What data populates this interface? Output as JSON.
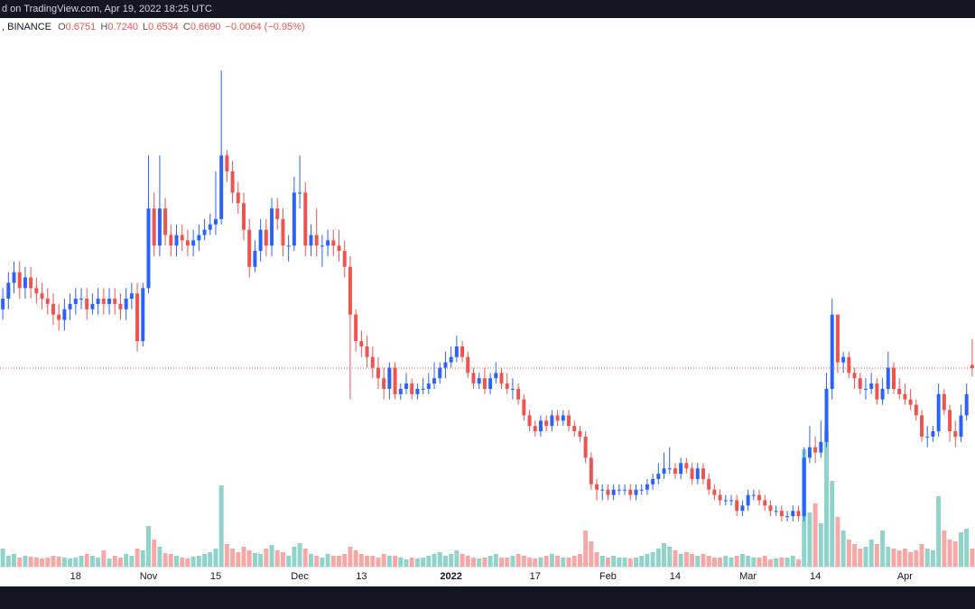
{
  "header": {
    "source": "d on TradingView.com, Apr 19, 2022 18:25 UTC",
    "symbol": ", BINANCE",
    "ohlc": [
      {
        "key": "O",
        "value": "0.6751"
      },
      {
        "key": "H",
        "value": "0.7240"
      },
      {
        "key": "L",
        "value": "0.6534"
      },
      {
        "key": "C",
        "value": "0.6690"
      }
    ],
    "change": "−0.0064 (−0.95%)"
  },
  "chart_data": {
    "type": "candlestick",
    "categories": [
      null,
      null,
      null,
      null,
      null,
      null,
      null,
      null,
      null,
      null,
      null,
      null,
      null,
      "18",
      null,
      null,
      null,
      null,
      null,
      null,
      null,
      null,
      null,
      null,
      null,
      null,
      "Nov",
      null,
      null,
      null,
      null,
      null,
      null,
      null,
      null,
      null,
      null,
      null,
      "15",
      null,
      null,
      null,
      null,
      null,
      null,
      null,
      null,
      null,
      null,
      null,
      null,
      null,
      null,
      "Dec",
      null,
      null,
      null,
      null,
      null,
      null,
      null,
      null,
      null,
      null,
      "13",
      null,
      null,
      null,
      null,
      null,
      null,
      null,
      null,
      null,
      null,
      null,
      null,
      null,
      null,
      null,
      "2022",
      null,
      null,
      null,
      null,
      null,
      null,
      null,
      null,
      null,
      null,
      null,
      null,
      null,
      null,
      "17",
      null,
      null,
      null,
      null,
      null,
      null,
      null,
      null,
      null,
      null,
      null,
      null,
      "Feb",
      null,
      null,
      null,
      null,
      null,
      null,
      null,
      null,
      null,
      null,
      null,
      "14",
      null,
      null,
      null,
      null,
      null,
      null,
      null,
      null,
      null,
      null,
      null,
      null,
      "Mar",
      null,
      null,
      null,
      null,
      null,
      null,
      null,
      null,
      null,
      null,
      null,
      "14",
      null,
      null,
      null,
      null,
      null,
      null,
      null,
      null,
      null,
      null,
      null,
      null,
      null,
      null,
      null,
      "Apr",
      null,
      null,
      null,
      null,
      null,
      null,
      null,
      null,
      null,
      null,
      null,
      null
    ],
    "open": [
      0.78,
      0.8,
      0.83,
      0.85,
      0.82,
      0.84,
      0.82,
      0.81,
      0.8,
      0.79,
      0.77,
      0.76,
      0.78,
      0.79,
      0.8,
      0.8,
      0.78,
      0.79,
      0.8,
      0.79,
      0.8,
      0.79,
      0.78,
      0.8,
      0.81,
      0.72,
      0.82,
      0.97,
      0.9,
      0.97,
      0.92,
      0.9,
      0.92,
      0.91,
      0.9,
      0.91,
      0.92,
      0.93,
      0.94,
      0.95,
      1.07,
      1.04,
      1.0,
      0.98,
      0.93,
      0.86,
      0.89,
      0.93,
      0.9,
      0.97,
      0.95,
      0.9,
      0.9,
      1.0,
      1.0,
      0.9,
      0.92,
      0.9,
      0.9,
      0.91,
      0.9,
      0.89,
      0.86,
      0.77,
      0.72,
      0.71,
      0.69,
      0.67,
      0.65,
      0.63,
      0.67,
      0.62,
      0.63,
      0.64,
      0.62,
      0.63,
      0.63,
      0.64,
      0.65,
      0.67,
      0.68,
      0.69,
      0.71,
      0.69,
      0.66,
      0.64,
      0.65,
      0.63,
      0.65,
      0.66,
      0.64,
      0.63,
      0.63,
      0.61,
      0.58,
      0.56,
      0.55,
      0.57,
      0.56,
      0.58,
      0.57,
      0.58,
      0.56,
      0.55,
      0.54,
      0.5,
      0.45,
      0.44,
      0.44,
      0.43,
      0.44,
      0.44,
      0.44,
      0.43,
      0.44,
      0.44,
      0.45,
      0.46,
      0.47,
      0.48,
      0.48,
      0.47,
      0.49,
      0.48,
      0.46,
      0.48,
      0.46,
      0.44,
      0.43,
      0.42,
      0.42,
      0.42,
      0.4,
      0.41,
      0.43,
      0.43,
      0.42,
      0.41,
      0.4,
      0.4,
      0.39,
      0.39,
      0.4,
      0.39,
      0.5,
      0.52,
      0.51,
      0.53,
      0.63,
      0.77,
      0.68,
      0.69,
      0.66,
      0.65,
      0.63,
      0.63,
      0.64,
      0.61,
      0.63,
      0.67,
      0.63,
      0.62,
      0.61,
      0.6,
      0.58,
      0.54,
      0.54,
      0.55,
      0.62,
      0.59,
      0.55,
      0.54,
      0.58,
      0.6751
    ],
    "high": [
      0.82,
      0.85,
      0.87,
      0.87,
      0.86,
      0.86,
      0.84,
      0.83,
      0.82,
      0.81,
      0.79,
      0.8,
      0.81,
      0.82,
      0.82,
      0.82,
      0.81,
      0.82,
      0.82,
      0.82,
      0.82,
      0.81,
      0.82,
      0.83,
      0.83,
      0.83,
      1.07,
      1.0,
      1.07,
      0.99,
      0.94,
      0.94,
      0.94,
      0.93,
      0.93,
      0.94,
      0.95,
      0.96,
      1.04,
      1.23,
      1.08,
      1.06,
      1.02,
      1.0,
      0.95,
      0.91,
      0.95,
      0.95,
      0.99,
      0.99,
      0.97,
      0.92,
      1.03,
      1.07,
      1.02,
      0.94,
      0.97,
      0.92,
      0.93,
      0.93,
      0.93,
      0.91,
      0.88,
      0.78,
      0.74,
      0.73,
      0.71,
      0.69,
      0.67,
      0.68,
      0.68,
      0.64,
      0.66,
      0.65,
      0.64,
      0.65,
      0.66,
      0.68,
      0.68,
      0.7,
      0.71,
      0.73,
      0.72,
      0.7,
      0.67,
      0.66,
      0.67,
      0.66,
      0.68,
      0.67,
      0.66,
      0.65,
      0.64,
      0.62,
      0.59,
      0.57,
      0.58,
      0.58,
      0.59,
      0.59,
      0.59,
      0.59,
      0.57,
      0.56,
      0.55,
      0.51,
      0.46,
      0.45,
      0.45,
      0.45,
      0.45,
      0.45,
      0.45,
      0.45,
      0.45,
      0.46,
      0.47,
      0.49,
      0.51,
      0.52,
      0.49,
      0.5,
      0.5,
      0.49,
      0.49,
      0.49,
      0.47,
      0.45,
      0.44,
      0.43,
      0.43,
      0.43,
      0.42,
      0.44,
      0.44,
      0.44,
      0.43,
      0.42,
      0.41,
      0.41,
      0.4,
      0.41,
      0.41,
      0.52,
      0.56,
      0.54,
      0.57,
      0.66,
      0.8,
      0.77,
      0.7,
      0.7,
      0.67,
      0.66,
      0.65,
      0.66,
      0.65,
      0.65,
      0.7,
      0.68,
      0.65,
      0.64,
      0.63,
      0.61,
      0.59,
      0.56,
      0.56,
      0.64,
      0.63,
      0.6,
      0.57,
      0.6,
      0.64,
      0.724
    ],
    "low": [
      0.76,
      0.78,
      0.81,
      0.8,
      0.8,
      0.8,
      0.79,
      0.78,
      0.77,
      0.75,
      0.74,
      0.74,
      0.76,
      0.77,
      0.78,
      0.76,
      0.77,
      0.77,
      0.77,
      0.77,
      0.77,
      0.76,
      0.76,
      0.78,
      0.7,
      0.71,
      0.81,
      0.88,
      0.88,
      0.9,
      0.88,
      0.88,
      0.89,
      0.88,
      0.88,
      0.89,
      0.91,
      0.92,
      0.92,
      0.94,
      1.02,
      0.98,
      0.96,
      0.91,
      0.84,
      0.85,
      0.87,
      0.88,
      0.88,
      0.93,
      0.88,
      0.87,
      0.89,
      0.97,
      0.88,
      0.88,
      0.88,
      0.86,
      0.88,
      0.88,
      0.87,
      0.84,
      0.61,
      0.7,
      0.69,
      0.67,
      0.65,
      0.63,
      0.61,
      0.61,
      0.61,
      0.61,
      0.62,
      0.61,
      0.61,
      0.62,
      0.62,
      0.63,
      0.64,
      0.65,
      0.67,
      0.68,
      0.68,
      0.65,
      0.63,
      0.63,
      0.62,
      0.62,
      0.64,
      0.63,
      0.62,
      0.61,
      0.6,
      0.57,
      0.55,
      0.54,
      0.54,
      0.55,
      0.55,
      0.56,
      0.56,
      0.55,
      0.54,
      0.53,
      0.49,
      0.44,
      0.42,
      0.42,
      0.42,
      0.42,
      0.43,
      0.43,
      0.42,
      0.42,
      0.43,
      0.43,
      0.44,
      0.45,
      0.46,
      0.47,
      0.46,
      0.46,
      0.47,
      0.45,
      0.45,
      0.45,
      0.43,
      0.42,
      0.41,
      0.41,
      0.41,
      0.39,
      0.39,
      0.4,
      0.42,
      0.41,
      0.4,
      0.39,
      0.39,
      0.38,
      0.38,
      0.38,
      0.38,
      0.38,
      0.49,
      0.49,
      0.5,
      0.52,
      0.61,
      0.66,
      0.66,
      0.65,
      0.63,
      0.62,
      0.61,
      0.62,
      0.6,
      0.6,
      0.62,
      0.62,
      0.61,
      0.6,
      0.59,
      0.57,
      0.53,
      0.52,
      0.53,
      0.54,
      0.58,
      0.53,
      0.52,
      0.53,
      0.57,
      0.6534
    ],
    "close": [
      0.8,
      0.83,
      0.85,
      0.82,
      0.84,
      0.82,
      0.81,
      0.8,
      0.79,
      0.77,
      0.76,
      0.78,
      0.79,
      0.8,
      0.8,
      0.78,
      0.79,
      0.8,
      0.79,
      0.8,
      0.79,
      0.78,
      0.8,
      0.81,
      0.72,
      0.82,
      0.97,
      0.9,
      0.97,
      0.92,
      0.9,
      0.92,
      0.91,
      0.9,
      0.91,
      0.92,
      0.93,
      0.94,
      0.95,
      1.07,
      1.04,
      1.0,
      0.98,
      0.93,
      0.86,
      0.89,
      0.93,
      0.9,
      0.97,
      0.95,
      0.9,
      0.9,
      1.0,
      1.0,
      0.9,
      0.92,
      0.9,
      0.9,
      0.91,
      0.9,
      0.89,
      0.86,
      0.77,
      0.72,
      0.71,
      0.69,
      0.67,
      0.65,
      0.63,
      0.67,
      0.62,
      0.63,
      0.64,
      0.62,
      0.63,
      0.63,
      0.64,
      0.65,
      0.67,
      0.68,
      0.69,
      0.71,
      0.69,
      0.66,
      0.64,
      0.65,
      0.63,
      0.65,
      0.66,
      0.64,
      0.63,
      0.63,
      0.61,
      0.58,
      0.56,
      0.55,
      0.57,
      0.56,
      0.58,
      0.57,
      0.58,
      0.56,
      0.55,
      0.54,
      0.5,
      0.45,
      0.44,
      0.44,
      0.43,
      0.44,
      0.44,
      0.44,
      0.43,
      0.44,
      0.44,
      0.45,
      0.46,
      0.47,
      0.48,
      0.48,
      0.47,
      0.49,
      0.48,
      0.46,
      0.48,
      0.46,
      0.44,
      0.43,
      0.42,
      0.42,
      0.42,
      0.4,
      0.41,
      0.43,
      0.43,
      0.42,
      0.41,
      0.4,
      0.4,
      0.39,
      0.39,
      0.4,
      0.39,
      0.5,
      0.52,
      0.51,
      0.53,
      0.63,
      0.77,
      0.68,
      0.69,
      0.66,
      0.65,
      0.63,
      0.63,
      0.64,
      0.61,
      0.63,
      0.67,
      0.63,
      0.62,
      0.61,
      0.6,
      0.58,
      0.54,
      0.54,
      0.55,
      0.62,
      0.59,
      0.55,
      0.54,
      0.58,
      0.62,
      0.669
    ],
    "volume": [
      20,
      12,
      14,
      10,
      12,
      11,
      10,
      9,
      10,
      12,
      11,
      10,
      9,
      10,
      12,
      14,
      12,
      10,
      18,
      9,
      12,
      10,
      14,
      12,
      20,
      18,
      45,
      30,
      22,
      15,
      14,
      12,
      10,
      9,
      11,
      12,
      14,
      16,
      20,
      90,
      25,
      20,
      16,
      22,
      18,
      15,
      14,
      20,
      24,
      18,
      16,
      12,
      22,
      26,
      20,
      14,
      12,
      10,
      14,
      12,
      12,
      14,
      22,
      18,
      14,
      12,
      12,
      10,
      14,
      12,
      12,
      10,
      8,
      10,
      9,
      10,
      12,
      14,
      16,
      12,
      14,
      18,
      14,
      12,
      10,
      9,
      10,
      12,
      14,
      10,
      10,
      12,
      14,
      12,
      10,
      9,
      10,
      12,
      14,
      12,
      10,
      10,
      12,
      14,
      40,
      28,
      16,
      12,
      10,
      12,
      10,
      10,
      9,
      10,
      12,
      14,
      16,
      20,
      26,
      22,
      18,
      14,
      16,
      14,
      12,
      14,
      12,
      10,
      10,
      12,
      10,
      12,
      14,
      12,
      10,
      10,
      12,
      8,
      9,
      10,
      10,
      12,
      8,
      130,
      60,
      70,
      48,
      150,
      95,
      55,
      40,
      30,
      25,
      20,
      22,
      30,
      25,
      40,
      22,
      20,
      18,
      20,
      16,
      18,
      25,
      20,
      18,
      78,
      40,
      30,
      28,
      38,
      42,
      20
    ],
    "ylim": [
      0.266,
      1.295
    ],
    "volume_ylim": [
      0,
      300
    ],
    "up_color": "#2962ff",
    "down_color": "#ef5350",
    "volume_up_color": "#8fd3cb",
    "volume_down_color": "#f5a8a6",
    "price_line": true
  }
}
